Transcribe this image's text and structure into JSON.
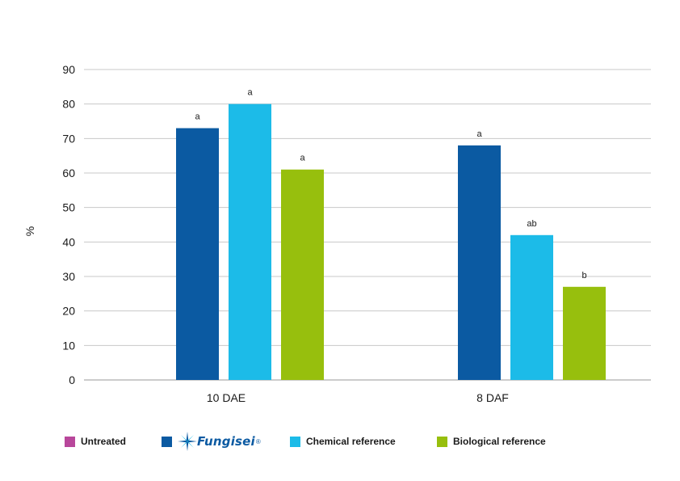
{
  "chart_data": {
    "type": "bar",
    "ylabel": "%",
    "ylim": [
      0,
      90
    ],
    "yticks": [
      0,
      10,
      20,
      30,
      40,
      50,
      60,
      70,
      80,
      90
    ],
    "grid": true,
    "categories": [
      "10 DAE",
      "8 DAF"
    ],
    "series": [
      {
        "name": "Untreated",
        "color": "#b8479b",
        "values": [
          0,
          0
        ],
        "labels": [
          "",
          ""
        ]
      },
      {
        "name": "Fungisei",
        "color": "#0b5aa2",
        "values": [
          73,
          68
        ],
        "labels": [
          "a",
          "a"
        ]
      },
      {
        "name": "Chemical reference",
        "color": "#1cbbe8",
        "values": [
          80,
          42
        ],
        "labels": [
          "a",
          "ab"
        ]
      },
      {
        "name": "Biological reference",
        "color": "#97bf0d",
        "values": [
          61,
          27
        ],
        "labels": [
          "a",
          "b"
        ]
      }
    ],
    "legend_position": "bottom"
  },
  "legend": {
    "untreated": "Untreated",
    "brand": "Fungisei",
    "brand_mark": "®",
    "chemical": "Chemical reference",
    "biological": "Biological reference"
  }
}
